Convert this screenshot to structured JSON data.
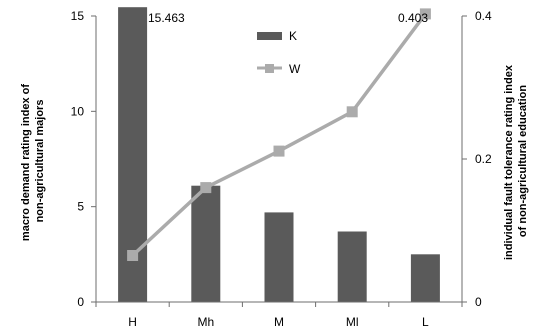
{
  "chart_data": {
    "type": "bar+line",
    "categories": [
      "H",
      "Mh",
      "M",
      "Ml",
      "L"
    ],
    "series": [
      {
        "name": "K",
        "type": "bar",
        "axis": "left",
        "values": [
          15.463,
          6.1,
          4.7,
          3.7,
          2.5
        ],
        "color": "#5a5a5a"
      },
      {
        "name": "W",
        "type": "line",
        "axis": "right",
        "values": [
          0.065,
          0.16,
          0.211,
          0.266,
          0.403
        ],
        "color": "#ababab"
      }
    ],
    "ylabel": "macro demand rating index of non-agricultural majors",
    "ylabel_lines": [
      "macro demand rating index of",
      "non-agricultural  majors"
    ],
    "y2label": "individual fault tolerance rating index of non-agricultural education",
    "y2label_lines": [
      "individual fault tolerance rating index",
      "of non-agricultural education"
    ],
    "ylim": [
      0,
      15
    ],
    "y_ticks": [
      "0",
      "5",
      "10",
      "15"
    ],
    "y2lim": [
      0,
      0.4
    ],
    "y2_ticks": [
      "0",
      "0.2",
      "0.4"
    ],
    "annotations": [
      "15.463",
      "0.403"
    ],
    "legend_position": "top-center",
    "grid": false
  }
}
